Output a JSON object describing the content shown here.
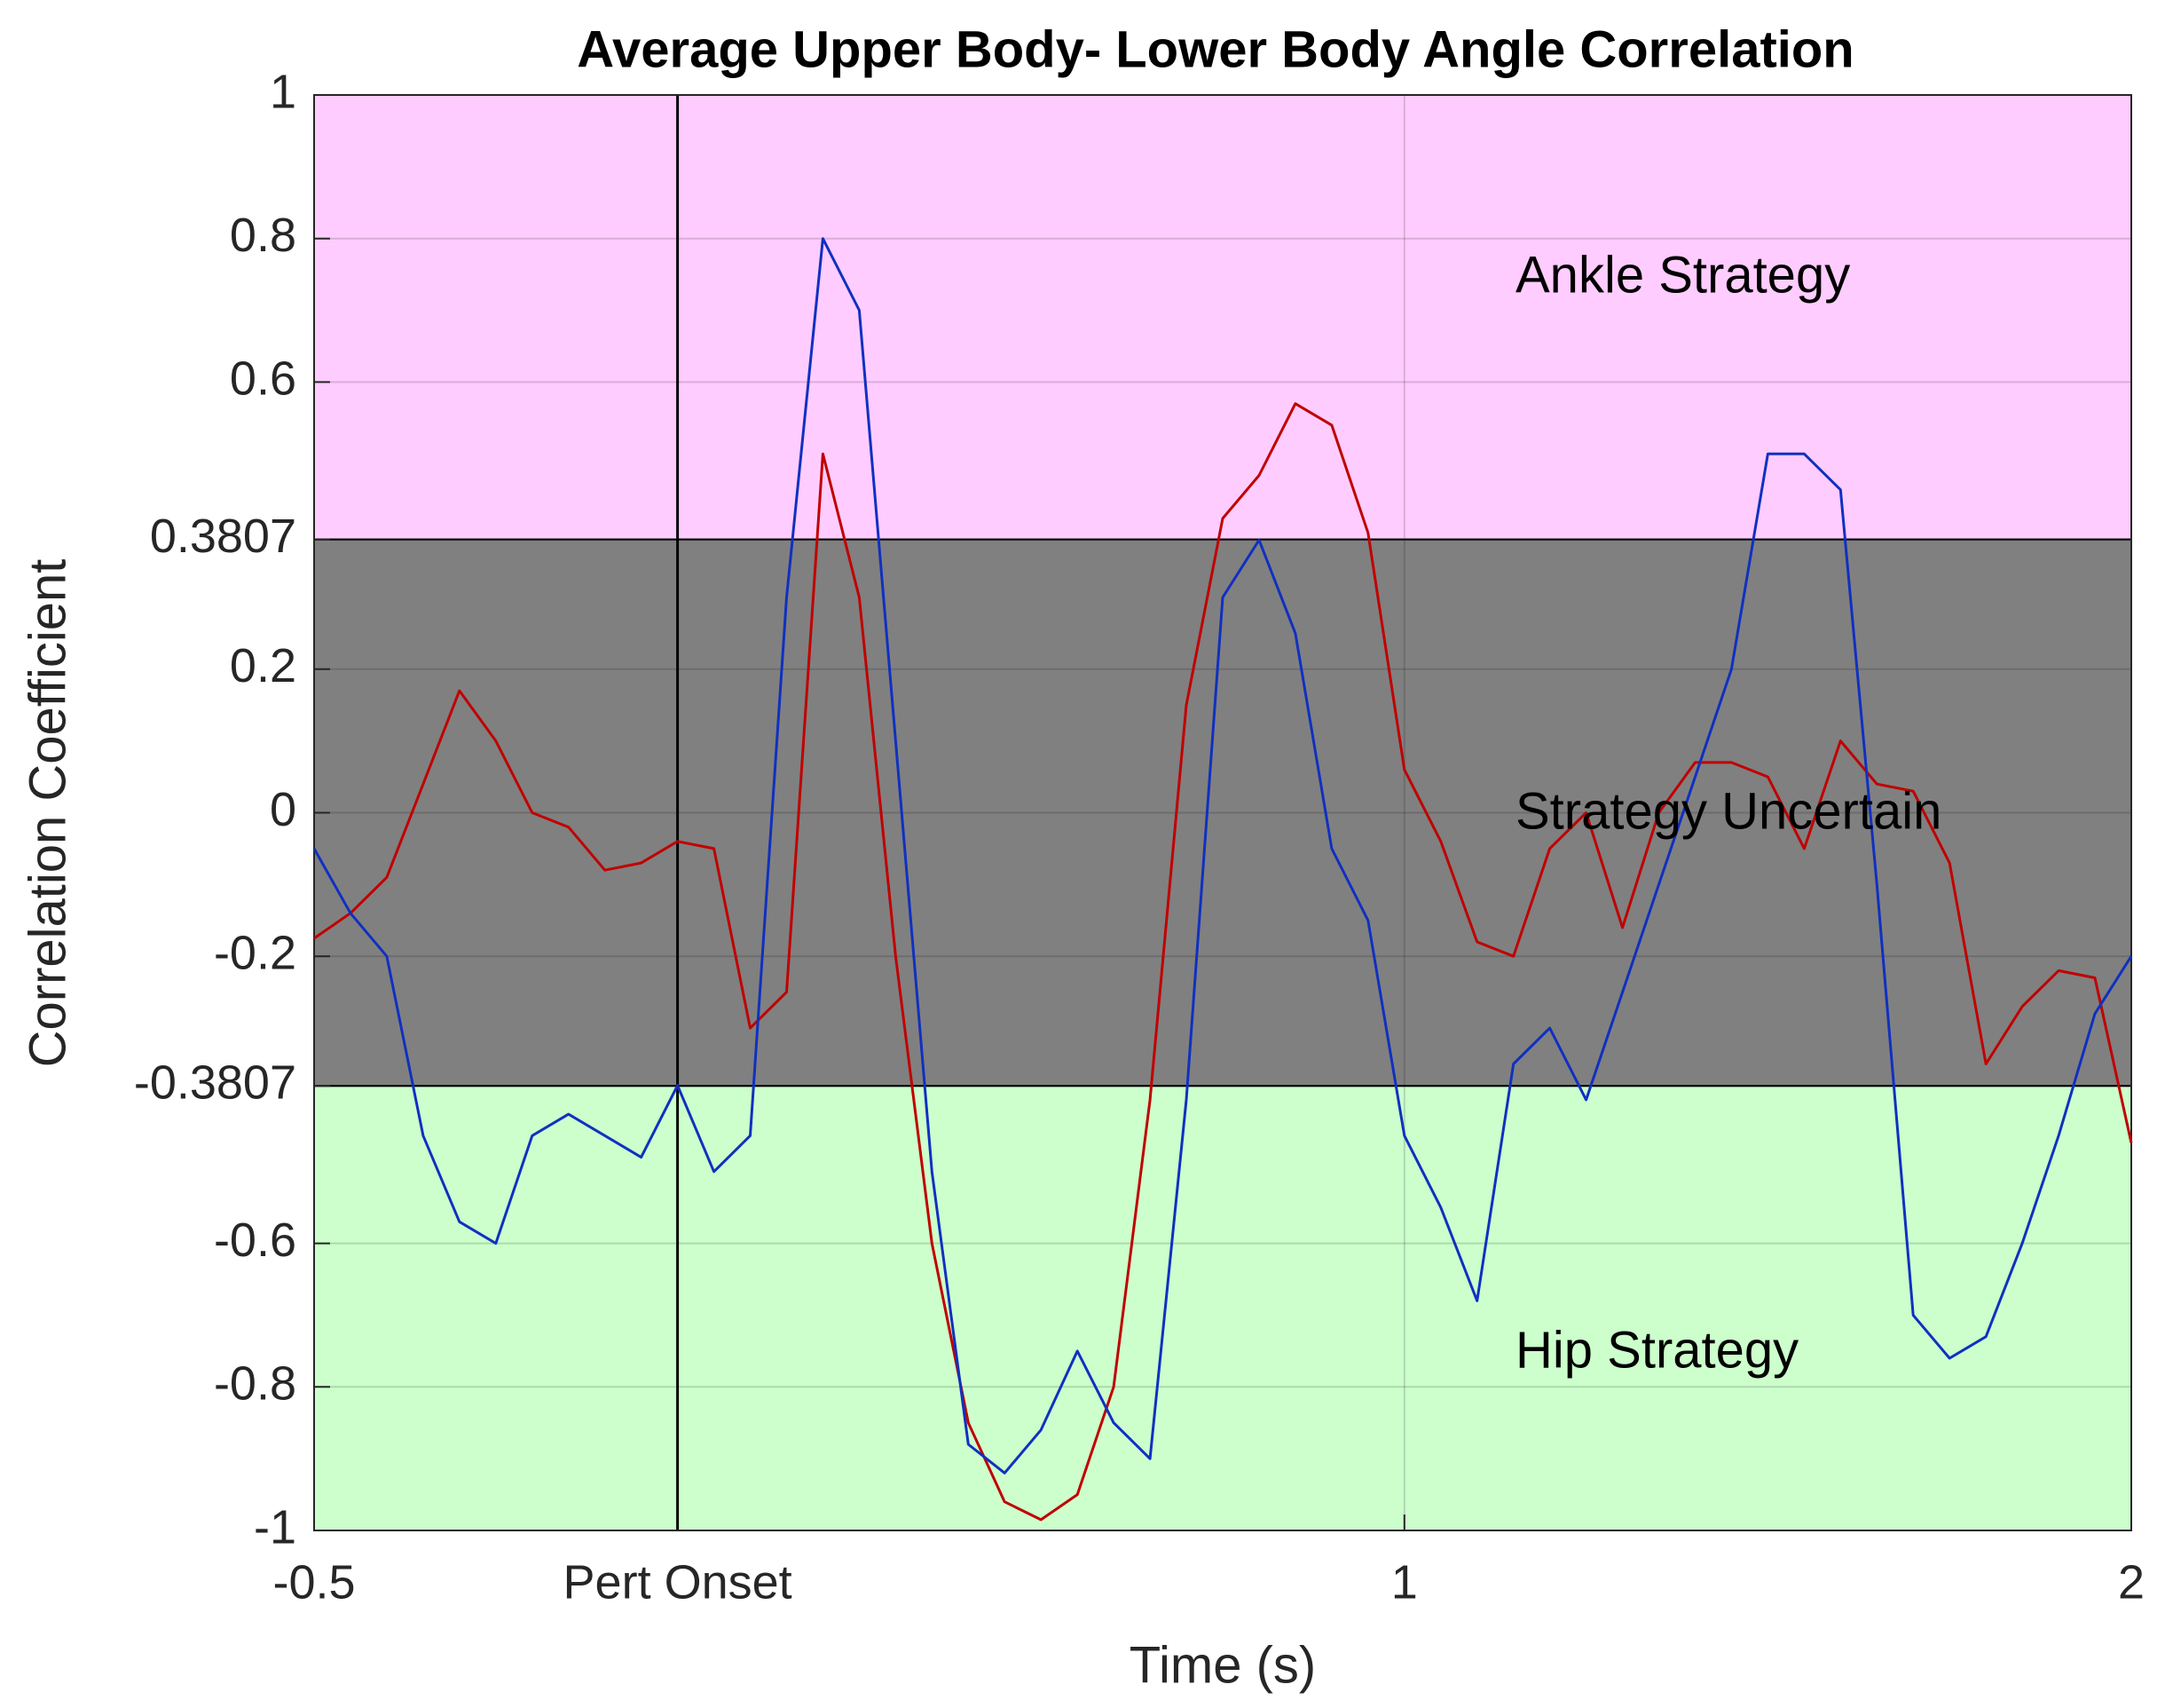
{
  "chart_data": {
    "type": "line",
    "title": "Average Upper Body- Lower Body Angle Correlation",
    "x_label": "Time (s)",
    "y_label": "Correlation Coefficient",
    "xlim": [
      -0.5,
      2
    ],
    "ylim": [
      -1,
      1
    ],
    "xticks": [
      -0.5,
      {
        "value": 0,
        "label": "Pert Onset"
      },
      1,
      2
    ],
    "yticks": [
      -1,
      -0.8,
      -0.6,
      -0.3807,
      -0.2,
      0,
      0.2,
      0.3807,
      0.6,
      0.8,
      1
    ],
    "grid": true,
    "vlines": [
      0
    ],
    "regions": [
      {
        "from": 0.3807,
        "to": 1,
        "color": "#ffccff",
        "label": "Ankle Strategy"
      },
      {
        "from": -0.3807,
        "to": 0.3807,
        "color": "#808080",
        "label": "Strategy Uncertain"
      },
      {
        "from": -1,
        "to": -0.3807,
        "color": "#ccffcc",
        "label": "Hip Strategy"
      }
    ],
    "x": [
      -0.5,
      -0.45,
      -0.4,
      -0.35,
      -0.3,
      -0.25,
      -0.2,
      -0.15,
      -0.1,
      -0.05,
      0,
      0.05,
      0.1,
      0.15,
      0.2,
      0.25,
      0.3,
      0.35,
      0.4,
      0.45,
      0.5,
      0.55,
      0.6,
      0.65,
      0.7,
      0.75,
      0.8,
      0.85,
      0.9,
      0.95,
      1,
      1.05,
      1.1,
      1.15,
      1.2,
      1.25,
      1.3,
      1.35,
      1.4,
      1.45,
      1.5,
      1.55,
      1.6,
      1.65,
      1.7,
      1.75,
      1.8,
      1.85,
      1.9,
      1.95,
      2
    ],
    "series": [
      {
        "color": "#c00000",
        "values": [
          -0.175,
          -0.14,
          -0.09,
          0.04,
          0.17,
          0.1,
          0,
          -0.02,
          -0.08,
          -0.07,
          -0.04,
          -0.05,
          -0.3,
          -0.25,
          0.5,
          0.3,
          -0.2,
          -0.6,
          -0.85,
          -0.96,
          -0.985,
          -0.95,
          -0.8,
          -0.4,
          0.15,
          0.41,
          0.47,
          0.57,
          0.54,
          0.39,
          0.06,
          -0.04,
          -0.18,
          -0.2,
          -0.05,
          0,
          -0.16,
          0,
          0.07,
          0.07,
          0.05,
          -0.05,
          0.1,
          0.04,
          0.03,
          -0.07,
          -0.35,
          -0.27,
          -0.22,
          -0.23,
          -0.46
        ]
      },
      {
        "color": "#1030c0",
        "values": [
          -0.05,
          -0.14,
          -0.2,
          -0.45,
          -0.57,
          -0.6,
          -0.45,
          -0.42,
          -0.45,
          -0.48,
          -0.38,
          -0.5,
          -0.45,
          0.3,
          0.8,
          0.7,
          0.1,
          -0.5,
          -0.88,
          -0.92,
          -0.86,
          -0.75,
          -0.85,
          -0.9,
          -0.4,
          0.3,
          0.38,
          0.25,
          -0.05,
          -0.15,
          -0.45,
          -0.55,
          -0.68,
          -0.35,
          -0.3,
          -0.4,
          -0.25,
          -0.1,
          0.05,
          0.2,
          0.5,
          0.5,
          0.45,
          -0.1,
          -0.7,
          -0.76,
          -0.73,
          -0.6,
          -0.45,
          -0.28,
          -0.2
        ]
      }
    ]
  }
}
